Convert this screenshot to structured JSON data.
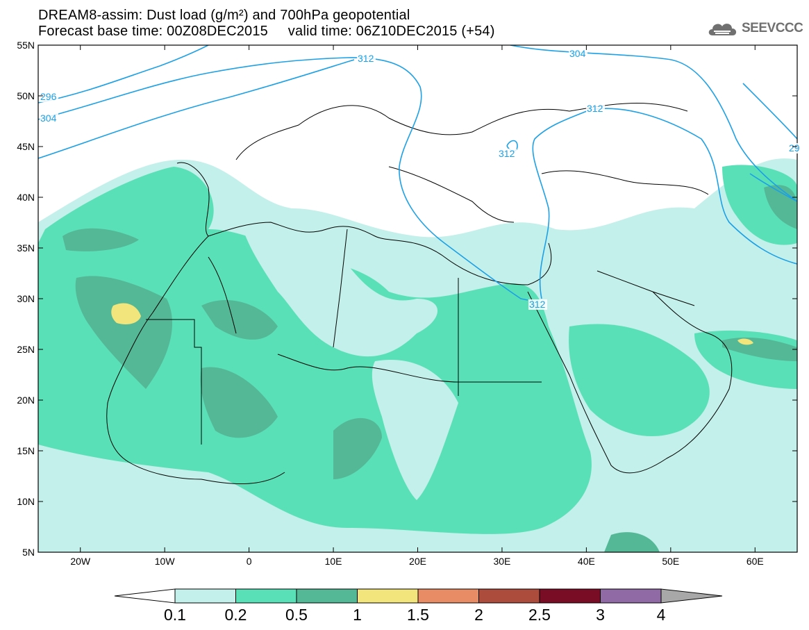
{
  "header": {
    "title_line1": "DREAM8-assim: Dust load (g/m²) and 700hPa geopotential",
    "title_line2": "Forecast base time: 00Z08DEC2015     valid time: 06Z10DEC2015 (+54)"
  },
  "logo": {
    "text": "SEEVCCC",
    "icon": "cloud-icon"
  },
  "map": {
    "lat_labels": [
      "55N",
      "50N",
      "45N",
      "40N",
      "35N",
      "30N",
      "25N",
      "20N",
      "15N",
      "10N",
      "5N"
    ],
    "lon_labels": [
      "20W",
      "10W",
      "0",
      "10E",
      "20E",
      "30E",
      "40E",
      "50E",
      "60E"
    ],
    "contour_labels": [
      "296",
      "304",
      "304",
      "312",
      "312",
      "312",
      "312",
      "29"
    ],
    "contour_color": "#1ca0e6"
  },
  "colorbar": {
    "labels": [
      "0.1",
      "0.2",
      "0.5",
      "1",
      "1.5",
      "2",
      "2.5",
      "3",
      "4"
    ],
    "colors": [
      "#c3f0ea",
      "#5ae0b7",
      "#54b896",
      "#f2e57b",
      "#e88c65",
      "#ab4c3c",
      "#7a0d26",
      "#8f6aa4",
      "#a8a8a8"
    ]
  }
}
